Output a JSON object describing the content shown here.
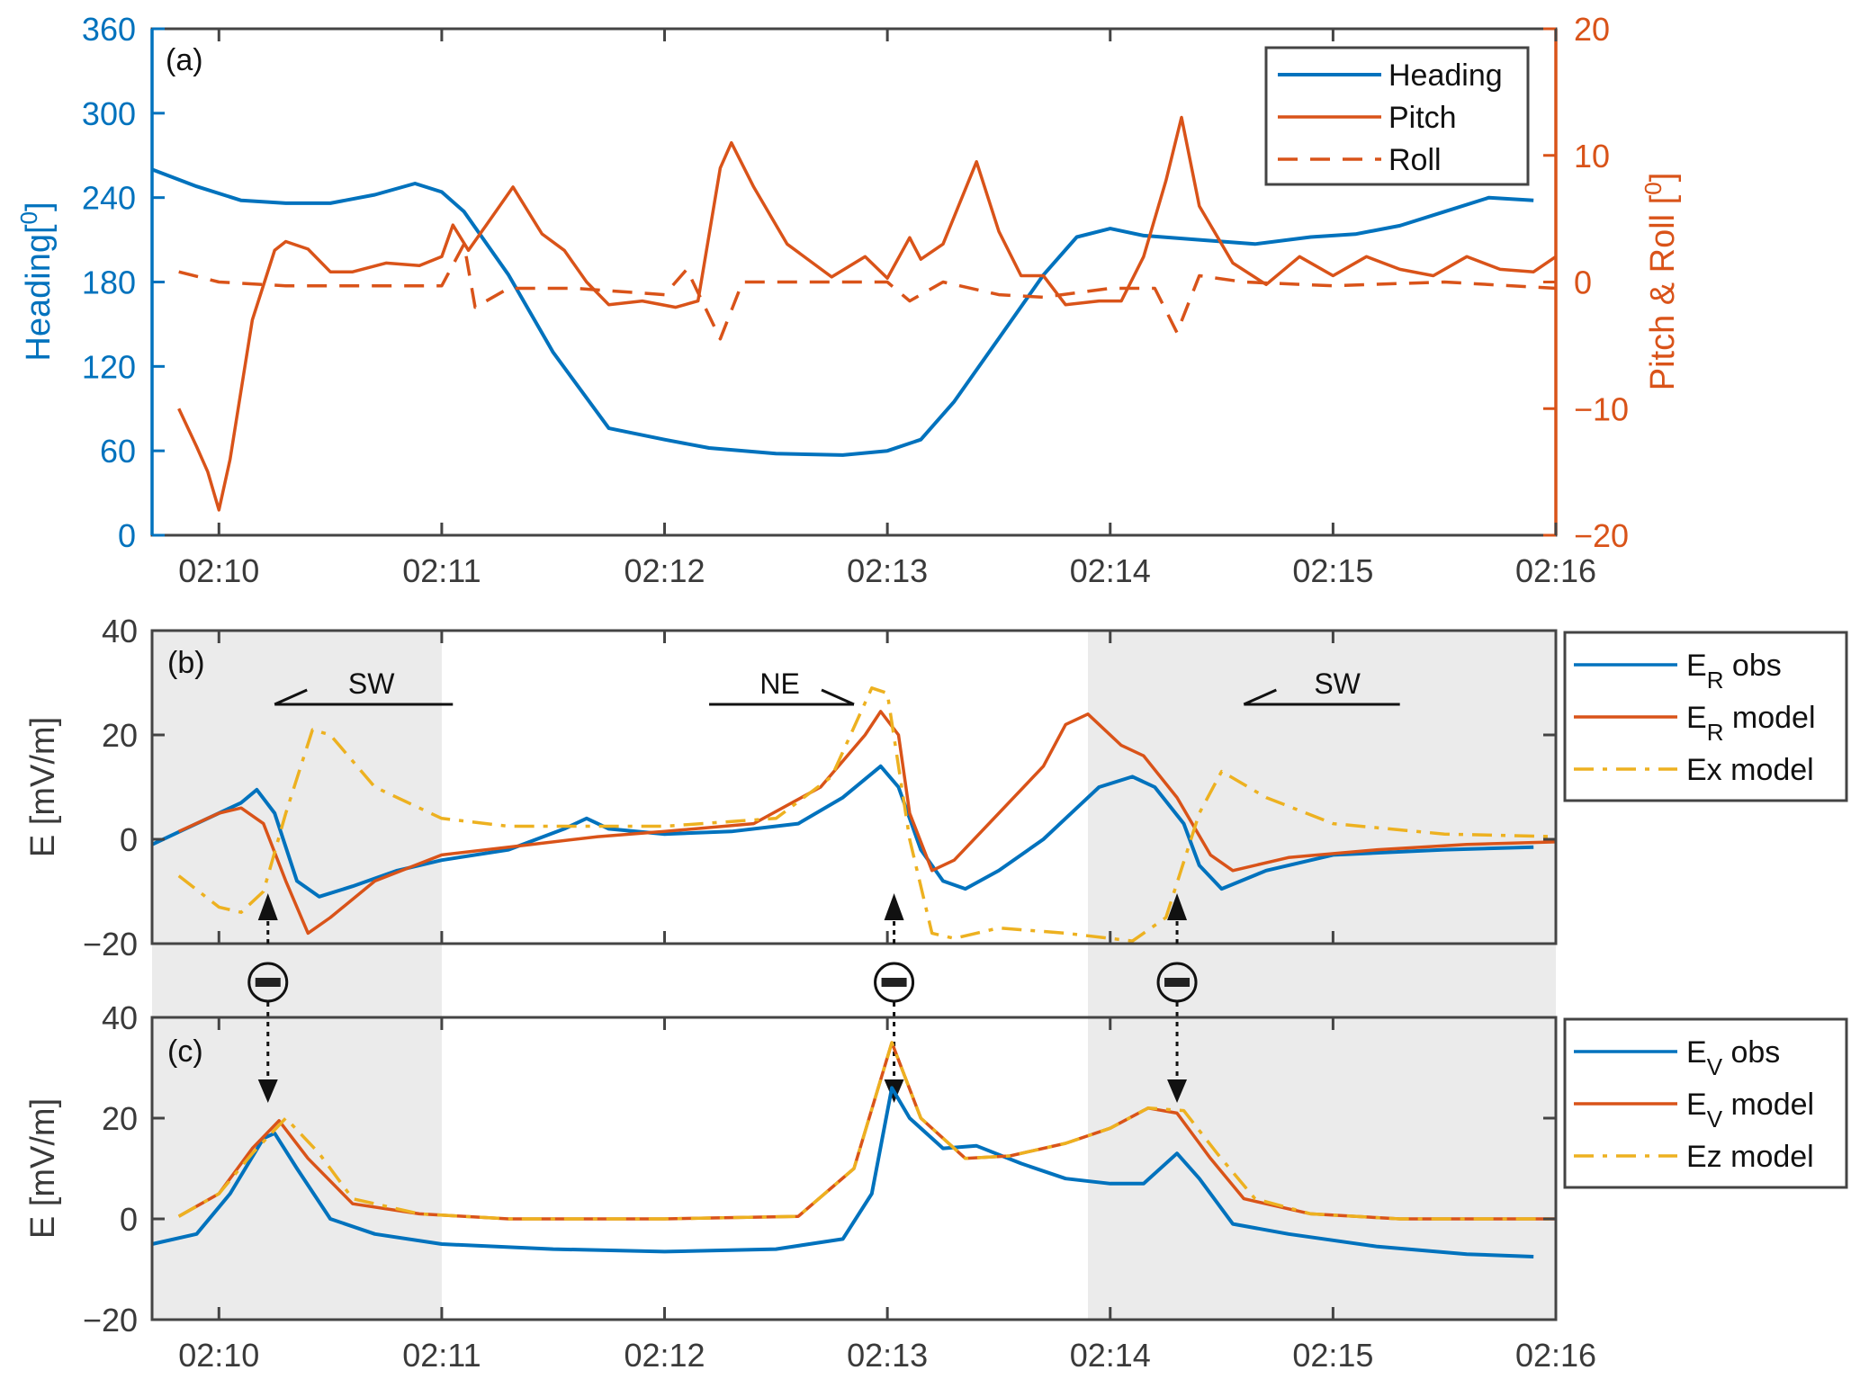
{
  "colors": {
    "blue": "#0072BD",
    "orange": "#D95319",
    "yellow": "#EDB120",
    "axis": "#444444",
    "shade": "#ebebeb"
  },
  "chart_data": [
    {
      "panel": "a",
      "panel_label": "(a)",
      "type": "line",
      "x_unit": "minutes after 02:00",
      "xlim": [
        9.7,
        16
      ],
      "xticks": [
        10,
        11,
        12,
        13,
        14,
        15,
        16
      ],
      "xtick_labels": [
        "02:10",
        "02:11",
        "02:12",
        "02:13",
        "02:14",
        "02:15",
        "02:16"
      ],
      "ylabel_left": "Heading[°]",
      "ylabel_left_text": "Heading[",
      "ylabel_left_sup": "0",
      "ylabel_left_close": "]",
      "ylim_left": [
        0,
        360
      ],
      "yticks_left": [
        0,
        60,
        120,
        180,
        240,
        300,
        360
      ],
      "ylabel_right_text": "Pitch & Roll [",
      "ylabel_right_sup": "0",
      "ylabel_right_close": "]",
      "ylim_right": [
        -20,
        20
      ],
      "yticks_right": [
        -20,
        -10,
        0,
        10,
        20
      ],
      "yticks_right_labels": [
        "−20",
        "−10",
        "0",
        "10",
        "20"
      ],
      "legend_position": "top-right",
      "series": [
        {
          "name": "Heading",
          "axis": "left",
          "color": "blue",
          "style": "solid",
          "x": [
            9.7,
            9.9,
            10.1,
            10.3,
            10.5,
            10.7,
            10.88,
            11.0,
            11.1,
            11.3,
            11.5,
            11.75,
            12.0,
            12.2,
            12.5,
            12.8,
            13.0,
            13.15,
            13.3,
            13.5,
            13.7,
            13.85,
            14.0,
            14.15,
            14.4,
            14.65,
            14.9,
            15.1,
            15.3,
            15.5,
            15.7,
            15.9
          ],
          "y": [
            260,
            248,
            238,
            236,
            236,
            242,
            250,
            244,
            230,
            185,
            130,
            76,
            68,
            62,
            58,
            57,
            60,
            68,
            95,
            140,
            185,
            212,
            218,
            213,
            210,
            207,
            212,
            214,
            220,
            230,
            240,
            238
          ]
        },
        {
          "name": "Pitch",
          "axis": "right",
          "color": "orange",
          "style": "solid",
          "x": [
            9.82,
            9.9,
            9.95,
            10.0,
            10.05,
            10.15,
            10.25,
            10.3,
            10.4,
            10.5,
            10.6,
            10.75,
            10.9,
            11.0,
            11.05,
            11.12,
            11.2,
            11.32,
            11.45,
            11.55,
            11.65,
            11.75,
            11.9,
            12.05,
            12.15,
            12.25,
            12.3,
            12.4,
            12.55,
            12.75,
            12.9,
            13.0,
            13.1,
            13.15,
            13.25,
            13.4,
            13.5,
            13.6,
            13.7,
            13.8,
            13.95,
            14.05,
            14.15,
            14.25,
            14.32,
            14.4,
            14.55,
            14.7,
            14.85,
            15.0,
            15.15,
            15.3,
            15.45,
            15.6,
            15.75,
            15.9,
            16.0
          ],
          "y": [
            -10,
            -13,
            -15,
            -18,
            -14,
            -3,
            2.5,
            3.2,
            2.6,
            0.8,
            0.8,
            1.5,
            1.3,
            2,
            4.5,
            2.5,
            4.5,
            7.5,
            3.8,
            2.5,
            0,
            -1.8,
            -1.5,
            -2,
            -1.5,
            9,
            11,
            7.5,
            3,
            0.4,
            2,
            0.3,
            3.5,
            1.8,
            3,
            9.5,
            4,
            0.5,
            0.5,
            -1.8,
            -1.5,
            -1.5,
            2,
            8,
            13,
            6,
            1.5,
            -0.2,
            2,
            0.5,
            2,
            1,
            0.5,
            2,
            1,
            0.8,
            2
          ]
        },
        {
          "name": "Roll",
          "axis": "right",
          "color": "orange",
          "style": "dashed",
          "x": [
            9.82,
            10.0,
            10.3,
            11.0,
            11.1,
            11.15,
            11.3,
            11.6,
            12.0,
            12.1,
            12.25,
            12.35,
            13.0,
            13.1,
            13.25,
            13.5,
            13.7,
            14.0,
            14.2,
            14.3,
            14.4,
            14.6,
            15.0,
            15.5,
            16.0
          ],
          "y": [
            0.8,
            0,
            -0.3,
            -0.3,
            3,
            -2,
            -0.5,
            -0.5,
            -1,
            1,
            -4.5,
            0,
            0,
            -1.5,
            0,
            -1,
            -1.2,
            -0.5,
            -0.5,
            -4,
            0.5,
            0,
            -0.3,
            0,
            -0.5
          ]
        }
      ]
    },
    {
      "panel": "b",
      "panel_label": "(b)",
      "type": "line",
      "x_unit": "minutes after 02:00",
      "xlim": [
        9.7,
        16
      ],
      "ylabel": "E [mV/m]",
      "ylim": [
        -20,
        40
      ],
      "yticks": [
        -20,
        0,
        20,
        40
      ],
      "ytick_labels": [
        "−20",
        "0",
        "20",
        "40"
      ],
      "shaded_intervals": [
        [
          9.7,
          11.0
        ],
        [
          13.9,
          16.0
        ]
      ],
      "legend_position": "outside-right",
      "annotations": [
        {
          "text": "SW",
          "direction": "left",
          "x_from": 11.05,
          "x_to": 10.25
        },
        {
          "text": "NE",
          "direction": "right",
          "x_from": 12.2,
          "x_to": 12.85
        },
        {
          "text": "SW",
          "direction": "left",
          "x_from": 15.3,
          "x_to": 14.6
        }
      ],
      "markers": [
        {
          "symbol": "minus",
          "x": 10.22,
          "arrow": "up"
        },
        {
          "symbol": "minus",
          "x": 13.03,
          "arrow": "up"
        },
        {
          "symbol": "minus",
          "x": 14.3,
          "arrow": "up"
        }
      ],
      "series": [
        {
          "name": "E_R obs",
          "label_main": "E",
          "label_sub": "R",
          "label_rest": " obs",
          "color": "blue",
          "style": "solid",
          "x": [
            9.7,
            9.9,
            10.1,
            10.17,
            10.25,
            10.35,
            10.45,
            10.6,
            10.8,
            11.0,
            11.3,
            11.55,
            11.65,
            11.75,
            12.0,
            12.3,
            12.6,
            12.8,
            12.97,
            13.05,
            13.15,
            13.25,
            13.35,
            13.5,
            13.7,
            13.85,
            13.95,
            14.1,
            14.2,
            14.33,
            14.4,
            14.5,
            14.7,
            15.0,
            15.5,
            15.9
          ],
          "y": [
            -1,
            3,
            7,
            9.5,
            5,
            -8,
            -11,
            -9,
            -6,
            -4,
            -2,
            2,
            4,
            2,
            1,
            1.5,
            3,
            8,
            14,
            10,
            -2,
            -8,
            -9.5,
            -6,
            0,
            6,
            10,
            12,
            10,
            3,
            -5,
            -9.5,
            -6,
            -3,
            -2,
            -1.5
          ]
        },
        {
          "name": "E_R model",
          "label_main": "E",
          "label_sub": "R",
          "label_rest": " model",
          "color": "orange",
          "style": "solid",
          "x": [
            9.82,
            10.0,
            10.1,
            10.2,
            10.3,
            10.4,
            10.5,
            10.7,
            11.0,
            11.3,
            11.7,
            12.0,
            12.4,
            12.7,
            12.9,
            12.97,
            13.05,
            13.1,
            13.2,
            13.3,
            13.5,
            13.7,
            13.8,
            13.9,
            14.05,
            14.15,
            14.3,
            14.45,
            14.55,
            14.8,
            15.2,
            15.6,
            16.0
          ],
          "y": [
            1.5,
            5,
            6,
            3,
            -8,
            -18,
            -15,
            -8,
            -3,
            -1.5,
            0.5,
            1.5,
            3,
            10,
            20,
            24.5,
            20,
            5,
            -6,
            -4,
            5,
            14,
            22,
            24,
            18,
            16,
            8,
            -3,
            -6,
            -3.5,
            -2,
            -1,
            -0.5
          ]
        },
        {
          "name": "Ex model",
          "label_main": "Ex",
          "label_sub": "",
          "label_rest": " model",
          "color": "yellow",
          "style": "dashdot",
          "x": [
            9.82,
            10.0,
            10.1,
            10.2,
            10.3,
            10.42,
            10.5,
            10.7,
            11.0,
            11.3,
            12.0,
            12.5,
            12.75,
            12.93,
            13.0,
            13.1,
            13.2,
            13.3,
            13.5,
            13.8,
            14.0,
            14.1,
            14.25,
            14.4,
            14.5,
            14.7,
            15.0,
            15.5,
            16.0
          ],
          "y": [
            -7,
            -13,
            -14,
            -10,
            5,
            21,
            20,
            10,
            4,
            2.5,
            2.5,
            4,
            12,
            29,
            28,
            0,
            -18,
            -19,
            -17,
            -18,
            -19,
            -19.5,
            -15,
            5,
            13,
            8,
            3,
            1,
            0.5
          ]
        }
      ]
    },
    {
      "panel": "c",
      "panel_label": "(c)",
      "type": "line",
      "x_unit": "minutes after 02:00",
      "xlim": [
        9.7,
        16
      ],
      "xticks": [
        10,
        11,
        12,
        13,
        14,
        15,
        16
      ],
      "xtick_labels": [
        "02:10",
        "02:11",
        "02:12",
        "02:13",
        "02:14",
        "02:15",
        "02:16"
      ],
      "ylabel": "E [mV/m]",
      "ylim": [
        -20,
        40
      ],
      "yticks": [
        -20,
        0,
        20,
        40
      ],
      "ytick_labels": [
        "−20",
        "0",
        "20",
        "40"
      ],
      "shaded_intervals": [
        [
          9.7,
          11.0
        ],
        [
          13.9,
          16.0
        ]
      ],
      "legend_position": "outside-right",
      "markers": [
        {
          "symbol": "arrow-down",
          "x": 10.22
        },
        {
          "symbol": "arrow-down",
          "x": 13.03
        },
        {
          "symbol": "arrow-down",
          "x": 14.3
        }
      ],
      "series": [
        {
          "name": "E_V obs",
          "label_main": "E",
          "label_sub": "V",
          "label_rest": " obs",
          "color": "blue",
          "style": "solid",
          "x": [
            9.7,
            9.9,
            10.05,
            10.2,
            10.25,
            10.35,
            10.5,
            10.7,
            11.0,
            11.5,
            12.0,
            12.5,
            12.8,
            12.93,
            13.02,
            13.1,
            13.25,
            13.4,
            13.6,
            13.8,
            14.0,
            14.15,
            14.3,
            14.4,
            14.55,
            14.8,
            15.2,
            15.6,
            15.9
          ],
          "y": [
            -5,
            -3,
            5,
            16,
            17,
            10,
            0,
            -3,
            -5,
            -6,
            -6.5,
            -6,
            -4,
            5,
            26,
            20,
            14,
            14.5,
            11,
            8,
            7,
            7,
            13,
            8,
            -1,
            -3,
            -5.5,
            -7,
            -7.5
          ]
        },
        {
          "name": "E_V model",
          "label_main": "E",
          "label_sub": "V",
          "label_rest": " model",
          "color": "orange",
          "style": "solid",
          "x": [
            9.82,
            10.0,
            10.15,
            10.27,
            10.4,
            10.6,
            10.9,
            11.3,
            12.0,
            12.6,
            12.85,
            13.02,
            13.15,
            13.35,
            13.55,
            13.8,
            14.0,
            14.17,
            14.3,
            14.45,
            14.6,
            14.9,
            15.3,
            16.0
          ],
          "y": [
            0.5,
            5,
            14,
            19.5,
            12,
            3,
            1,
            0,
            0,
            0.5,
            10,
            35,
            20,
            12,
            12.5,
            15,
            18,
            22,
            21,
            12,
            4,
            1,
            0,
            0
          ]
        },
        {
          "name": "Ez model",
          "label_main": "Ez",
          "label_sub": "",
          "label_rest": " model",
          "color": "yellow",
          "style": "dashdot",
          "x": [
            9.82,
            10.0,
            10.15,
            10.3,
            10.45,
            10.6,
            10.9,
            11.3,
            12.0,
            12.6,
            12.85,
            13.02,
            13.15,
            13.35,
            13.55,
            13.8,
            14.0,
            14.17,
            14.33,
            14.48,
            14.65,
            14.9,
            15.3,
            16.0
          ],
          "y": [
            0.5,
            5,
            13,
            20,
            13,
            4,
            1,
            0,
            0,
            0.5,
            10,
            35,
            20,
            12,
            12.5,
            15,
            18,
            22,
            21.5,
            13,
            4,
            1,
            0,
            0
          ]
        }
      ]
    }
  ]
}
